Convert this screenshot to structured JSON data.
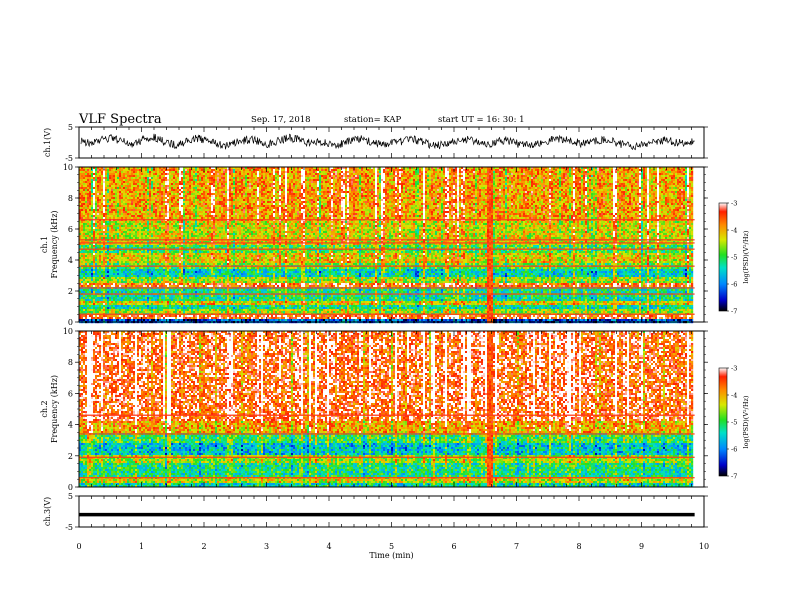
{
  "header": {
    "title": "VLF Spectra",
    "date": "Sep. 17, 2018",
    "station": "station= KAP",
    "start": "start  UT =   16: 30: 1"
  },
  "chart_data": [
    {
      "type": "line",
      "name": "ch1-waveform",
      "ylabel": "ch.1(V)",
      "ylim": [
        -5,
        5
      ],
      "yticks": [
        5,
        -5
      ],
      "xlim": [
        0,
        10
      ],
      "profile": [
        0.6,
        -0.4,
        0.9,
        1.4,
        0.3,
        -0.6,
        1.1,
        1.6,
        0.4,
        -0.8,
        0.2,
        1.3,
        0.8,
        -0.3,
        -1.2,
        0.1,
        1.0,
        0.5,
        -0.5,
        0.7,
        1.5,
        0.9,
        -0.2,
        0.3,
        -0.9,
        -0.4,
        0.6,
        1.2,
        0.2,
        -0.7,
        -0.3,
        0.5,
        0.9,
        -0.1,
        -1.1,
        -0.6,
        0.4,
        1.0,
        0.3,
        -0.5,
        0.2,
        0.8,
        -0.4,
        -1.0,
        -0.2,
        0.7,
        1.3,
        0.6,
        -0.3,
        0.1,
        0.9,
        0.4,
        -0.6,
        -1.3,
        -0.5,
        0.3,
        0.8,
        0.2,
        -0.4,
        0.6
      ],
      "noise": 1.3
    },
    {
      "type": "heatmap",
      "name": "ch1-spectrogram",
      "ylabel": "ch.1",
      "ylabel2": "Frequency  (kHz)",
      "xlim": [
        0,
        10
      ],
      "ylim": [
        0,
        10
      ],
      "yticks": [
        0,
        2,
        4,
        6,
        8,
        10
      ],
      "colorbar": {
        "label": "log(PSD)(V²/Hz)",
        "range": [
          -7,
          -3
        ],
        "ticks": [
          -3,
          -4,
          -5,
          -6,
          -7
        ]
      },
      "bands": [
        {
          "f": [
            0.0,
            0.2
          ],
          "level": -6.3
        },
        {
          "f": [
            0.2,
            0.5
          ],
          "level": -3.4
        },
        {
          "f": [
            0.5,
            0.8
          ],
          "level": -4.6
        },
        {
          "f": [
            0.8,
            1.1
          ],
          "level": -5.3
        },
        {
          "f": [
            1.1,
            1.4
          ],
          "level": -4.2
        },
        {
          "f": [
            1.4,
            2.2
          ],
          "level": -5.2
        },
        {
          "f": [
            2.2,
            2.5
          ],
          "level": -3.5
        },
        {
          "f": [
            2.5,
            2.9
          ],
          "level": -4.6
        },
        {
          "f": [
            2.9,
            3.4
          ],
          "level": -5.4
        },
        {
          "f": [
            3.4,
            3.8
          ],
          "level": -4.8
        },
        {
          "f": [
            3.8,
            4.4
          ],
          "level": -4.2
        },
        {
          "f": [
            4.4,
            5.0
          ],
          "level": -4.9
        },
        {
          "f": [
            5.0,
            6.5
          ],
          "level": -4.3
        },
        {
          "f": [
            6.5,
            10.0
          ],
          "level": -3.9
        }
      ],
      "lines": [
        0.5,
        1.8,
        2.2,
        3.6,
        4.7,
        5.1,
        5.3,
        6.6
      ],
      "burst_col_at_min": 6.55
    },
    {
      "type": "heatmap",
      "name": "ch2-spectrogram",
      "ylabel": "ch.2",
      "ylabel2": "Frequency  (kHz)",
      "xlim": [
        0,
        10
      ],
      "ylim": [
        0,
        10
      ],
      "yticks": [
        0,
        2,
        4,
        6,
        8,
        10
      ],
      "colorbar": {
        "label": "log(PSD)(V²/Hz)",
        "range": [
          -7,
          -3
        ],
        "ticks": [
          -3,
          -4,
          -5,
          -6,
          -7
        ]
      },
      "bands": [
        {
          "f": [
            0.0,
            0.3
          ],
          "level": -5.4
        },
        {
          "f": [
            0.3,
            0.7
          ],
          "level": -4.4
        },
        {
          "f": [
            0.7,
            1.6
          ],
          "level": -5.2
        },
        {
          "f": [
            1.6,
            2.1
          ],
          "level": -4.6
        },
        {
          "f": [
            2.1,
            2.8
          ],
          "level": -5.6
        },
        {
          "f": [
            2.8,
            3.5
          ],
          "level": -5.0
        },
        {
          "f": [
            3.5,
            4.2
          ],
          "level": -4.0
        },
        {
          "f": [
            4.2,
            10.0
          ],
          "level": -3.4
        }
      ],
      "lines": [
        0.6,
        1.9,
        3.4,
        4.6
      ],
      "burst_col_at_min": 6.55
    },
    {
      "type": "line",
      "name": "ch3-waveform",
      "ylabel": "ch.3(V)",
      "ylim": [
        -5,
        5
      ],
      "yticks": [
        5,
        -5
      ],
      "xlim": [
        0,
        10
      ],
      "constant": -1.0,
      "xlabel": "Time  (min)",
      "xticks": [
        0,
        1,
        2,
        3,
        4,
        5,
        6,
        7,
        8,
        9,
        10
      ]
    }
  ]
}
